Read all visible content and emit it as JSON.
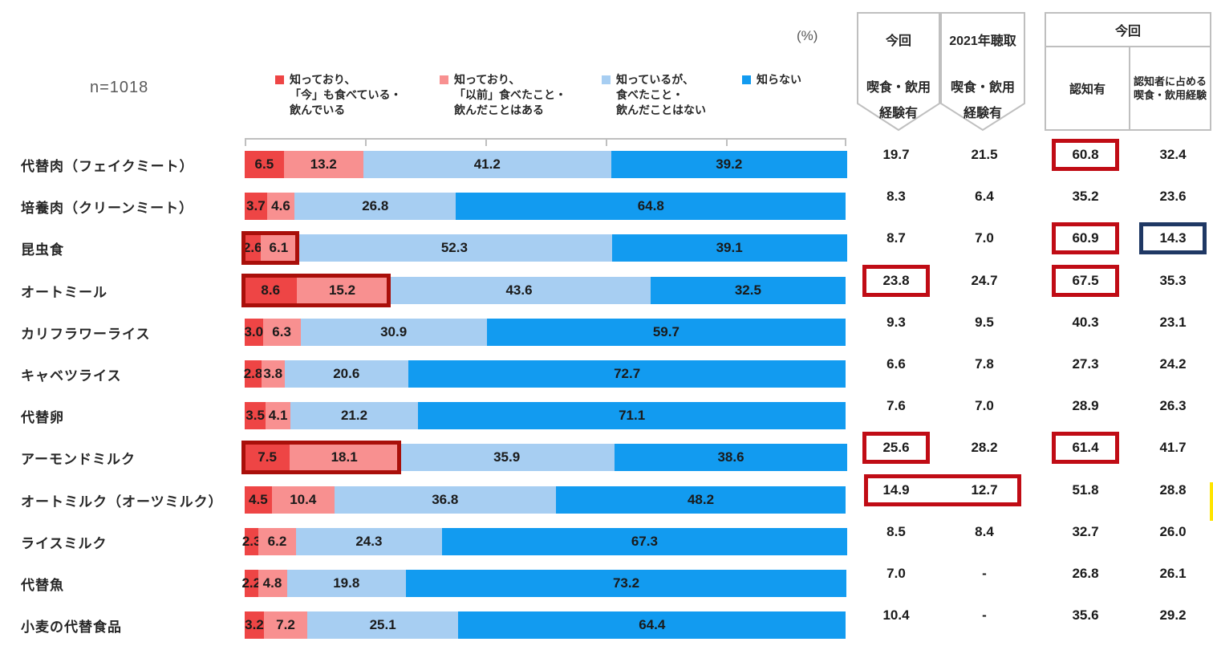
{
  "meta": {
    "sample_label": "n=1018",
    "unit_label": "(%)"
  },
  "colors": {
    "series": [
      "#EE4545",
      "#F89090",
      "#A7CEF2",
      "#129BF0"
    ],
    "highlight_cell_red": "#C00C15",
    "highlight_bar_red": "#A90F0A",
    "highlight_navy": "#1F3864",
    "edge_marker_yellow": "#FFE500",
    "axis_gray": "#BFBFBF",
    "border_gray": "#BFBFBF",
    "text_dark": "#262626",
    "text_gray": "#595959"
  },
  "legend": [
    {
      "key": "know-eating-now",
      "color": "#EE4545",
      "lines": [
        "知っており、",
        "「今」も食べている・",
        "飲んでいる"
      ]
    },
    {
      "key": "know-ate-before",
      "color": "#F89090",
      "lines": [
        "知っており、",
        "「以前」食べたこと・",
        "飲んだことはある"
      ]
    },
    {
      "key": "know-not-eaten",
      "color": "#A7CEF2",
      "lines": [
        "知っているが、",
        "食べたこと・",
        "飲んだことはない"
      ]
    },
    {
      "key": "dont-know",
      "color": "#129BF0",
      "lines": [
        "知らない"
      ]
    }
  ],
  "header": {
    "banner1_lines": [
      "今回",
      "喫食・飲用",
      "経験有"
    ],
    "banner2_lines": [
      "2021年聴取",
      "喫食・飲用",
      "経験有"
    ],
    "table_group": "今回",
    "col_aware": "認知有",
    "col_rate": "認知者に占める喫食・飲用経験"
  },
  "rows": [
    {
      "label": "代替肉（フェイクミート）",
      "seg_labels": [
        "6.5",
        "13.2",
        "41.2",
        "39.2"
      ],
      "seg_values": [
        6.5,
        13.2,
        41.2,
        39.2
      ],
      "table": [
        "19.7",
        "21.5",
        "60.8",
        "32.4"
      ],
      "bar_box": false,
      "cell_boxes": [
        null,
        null,
        "red",
        null
      ],
      "span_box_01": false,
      "edge_marker": false
    },
    {
      "label": "培養肉（クリーンミート）",
      "seg_labels": [
        "3.7",
        "4.6",
        "26.8",
        "64.8"
      ],
      "seg_values": [
        3.7,
        4.6,
        26.8,
        64.8
      ],
      "table": [
        "8.3",
        "6.4",
        "35.2",
        "23.6"
      ],
      "bar_box": false,
      "cell_boxes": [
        null,
        null,
        null,
        null
      ],
      "span_box_01": false,
      "edge_marker": false
    },
    {
      "label": "昆虫食",
      "seg_labels": [
        "2.6",
        "6.1",
        "52.3",
        "39.1"
      ],
      "seg_values": [
        2.6,
        6.1,
        52.3,
        39.1
      ],
      "table": [
        "8.7",
        "7.0",
        "60.9",
        "14.3"
      ],
      "bar_box": true,
      "cell_boxes": [
        null,
        null,
        "red",
        "navy"
      ],
      "span_box_01": false,
      "edge_marker": false
    },
    {
      "label": "オートミール",
      "seg_labels": [
        "8.6",
        "15.2",
        "43.6",
        "32.5"
      ],
      "seg_values": [
        8.6,
        15.2,
        43.6,
        32.5
      ],
      "table": [
        "23.8",
        "24.7",
        "67.5",
        "35.3"
      ],
      "bar_box": true,
      "cell_boxes": [
        "red",
        null,
        "red",
        null
      ],
      "span_box_01": false,
      "edge_marker": false
    },
    {
      "label": "カリフラワーライス",
      "seg_labels": [
        "3.0",
        "6.3",
        "30.9",
        "59.7"
      ],
      "seg_values": [
        3.0,
        6.3,
        30.9,
        59.7
      ],
      "table": [
        "9.3",
        "9.5",
        "40.3",
        "23.1"
      ],
      "bar_box": false,
      "cell_boxes": [
        null,
        null,
        null,
        null
      ],
      "span_box_01": false,
      "edge_marker": false
    },
    {
      "label": "キャベツライス",
      "seg_labels": [
        "2.8",
        "3.8",
        "20.6",
        "72.7"
      ],
      "seg_values": [
        2.8,
        3.8,
        20.6,
        72.7
      ],
      "table": [
        "6.6",
        "7.8",
        "27.3",
        "24.2"
      ],
      "bar_box": false,
      "cell_boxes": [
        null,
        null,
        null,
        null
      ],
      "span_box_01": false,
      "edge_marker": false
    },
    {
      "label": "代替卵",
      "seg_labels": [
        "3.5",
        "4.1",
        "21.2",
        "71.1"
      ],
      "seg_values": [
        3.5,
        4.1,
        21.2,
        71.1
      ],
      "table": [
        "7.6",
        "7.0",
        "28.9",
        "26.3"
      ],
      "bar_box": false,
      "cell_boxes": [
        null,
        null,
        null,
        null
      ],
      "span_box_01": false,
      "edge_marker": false
    },
    {
      "label": "アーモンドミルク",
      "seg_labels": [
        "7.5",
        "18.1",
        "35.9",
        "38.6"
      ],
      "seg_values": [
        7.5,
        18.1,
        35.9,
        38.6
      ],
      "table": [
        "25.6",
        "28.2",
        "61.4",
        "41.7"
      ],
      "bar_box": true,
      "cell_boxes": [
        "red",
        null,
        "red",
        null
      ],
      "span_box_01": false,
      "edge_marker": false
    },
    {
      "label": "オートミルク（オーツミルク）",
      "seg_labels": [
        "4.5",
        "10.4",
        "36.8",
        "48.2"
      ],
      "seg_values": [
        4.5,
        10.4,
        36.8,
        48.2
      ],
      "table": [
        "14.9",
        "12.7",
        "51.8",
        "28.8"
      ],
      "bar_box": false,
      "cell_boxes": [
        null,
        null,
        null,
        null
      ],
      "span_box_01": true,
      "edge_marker": true
    },
    {
      "label": "ライスミルク",
      "seg_labels": [
        "2.3",
        "6.2",
        "24.3",
        "67.3"
      ],
      "seg_values": [
        2.3,
        6.2,
        24.3,
        67.3
      ],
      "table": [
        "8.5",
        "8.4",
        "32.7",
        "26.0"
      ],
      "bar_box": false,
      "cell_boxes": [
        null,
        null,
        null,
        null
      ],
      "span_box_01": false,
      "edge_marker": false
    },
    {
      "label": "代替魚",
      "seg_labels": [
        "2.2",
        "4.8",
        "19.8",
        "73.2"
      ],
      "seg_values": [
        2.2,
        4.8,
        19.8,
        73.2
      ],
      "table": [
        "7.0",
        "-",
        "26.8",
        "26.1"
      ],
      "bar_box": false,
      "cell_boxes": [
        null,
        null,
        null,
        null
      ],
      "span_box_01": false,
      "edge_marker": false
    },
    {
      "label": "小麦の代替食品",
      "seg_labels": [
        "3.2",
        "7.2",
        "25.1",
        "64.4"
      ],
      "seg_values": [
        3.2,
        7.2,
        25.1,
        64.4
      ],
      "table": [
        "10.4",
        "-",
        "35.6",
        "29.2"
      ],
      "bar_box": false,
      "cell_boxes": [
        null,
        null,
        null,
        null
      ],
      "span_box_01": false,
      "edge_marker": false
    }
  ],
  "chart_data": {
    "type": "bar",
    "orientation": "horizontal",
    "stacked": true,
    "unit": "%",
    "xlim": [
      0,
      100
    ],
    "x_ticks": [
      0,
      20,
      40,
      60,
      80,
      100
    ],
    "sample": "n=1018",
    "legend_position": "top",
    "categories": [
      "代替肉（フェイクミート）",
      "培養肉（クリーンミート）",
      "昆虫食",
      "オートミール",
      "カリフラワーライス",
      "キャベツライス",
      "代替卵",
      "アーモンドミルク",
      "オートミルク（オーツミルク）",
      "ライスミルク",
      "代替魚",
      "小麦の代替食品"
    ],
    "series": [
      {
        "name": "知っており、「今」も食べている・飲んでいる",
        "color": "#EE4545",
        "values": [
          6.5,
          3.7,
          2.6,
          8.6,
          3.0,
          2.8,
          3.5,
          7.5,
          4.5,
          2.3,
          2.2,
          3.2
        ]
      },
      {
        "name": "知っており、「以前」食べたこと・飲んだことはある",
        "color": "#F89090",
        "values": [
          13.2,
          4.6,
          6.1,
          15.2,
          6.3,
          3.8,
          4.1,
          18.1,
          10.4,
          6.2,
          4.8,
          7.2
        ]
      },
      {
        "name": "知っているが、食べたこと・飲んだことはない",
        "color": "#A7CEF2",
        "values": [
          41.2,
          26.8,
          52.3,
          43.6,
          30.9,
          20.6,
          21.2,
          35.9,
          36.8,
          24.3,
          19.8,
          25.1
        ]
      },
      {
        "name": "知らない",
        "color": "#129BF0",
        "values": [
          39.2,
          64.8,
          39.1,
          32.5,
          59.7,
          72.7,
          71.1,
          38.6,
          48.2,
          67.3,
          73.2,
          64.4
        ]
      }
    ],
    "table_columns": [
      "今回 喫食・飲用経験有",
      "2021年聴取 喫食・飲用経験有",
      "今回 認知有",
      "今回 認知者に占める喫食・飲用経験"
    ],
    "table_values": [
      [
        "19.7",
        "21.5",
        "60.8",
        "32.4"
      ],
      [
        "8.3",
        "6.4",
        "35.2",
        "23.6"
      ],
      [
        "8.7",
        "7.0",
        "60.9",
        "14.3"
      ],
      [
        "23.8",
        "24.7",
        "67.5",
        "35.3"
      ],
      [
        "9.3",
        "9.5",
        "40.3",
        "23.1"
      ],
      [
        "6.6",
        "7.8",
        "27.3",
        "24.2"
      ],
      [
        "7.6",
        "7.0",
        "28.9",
        "26.3"
      ],
      [
        "25.6",
        "28.2",
        "61.4",
        "41.7"
      ],
      [
        "14.9",
        "12.7",
        "51.8",
        "28.8"
      ],
      [
        "8.5",
        "8.4",
        "32.7",
        "26.0"
      ],
      [
        "7.0",
        "-",
        "26.8",
        "26.1"
      ],
      [
        "10.4",
        "-",
        "35.6",
        "29.2"
      ]
    ]
  }
}
